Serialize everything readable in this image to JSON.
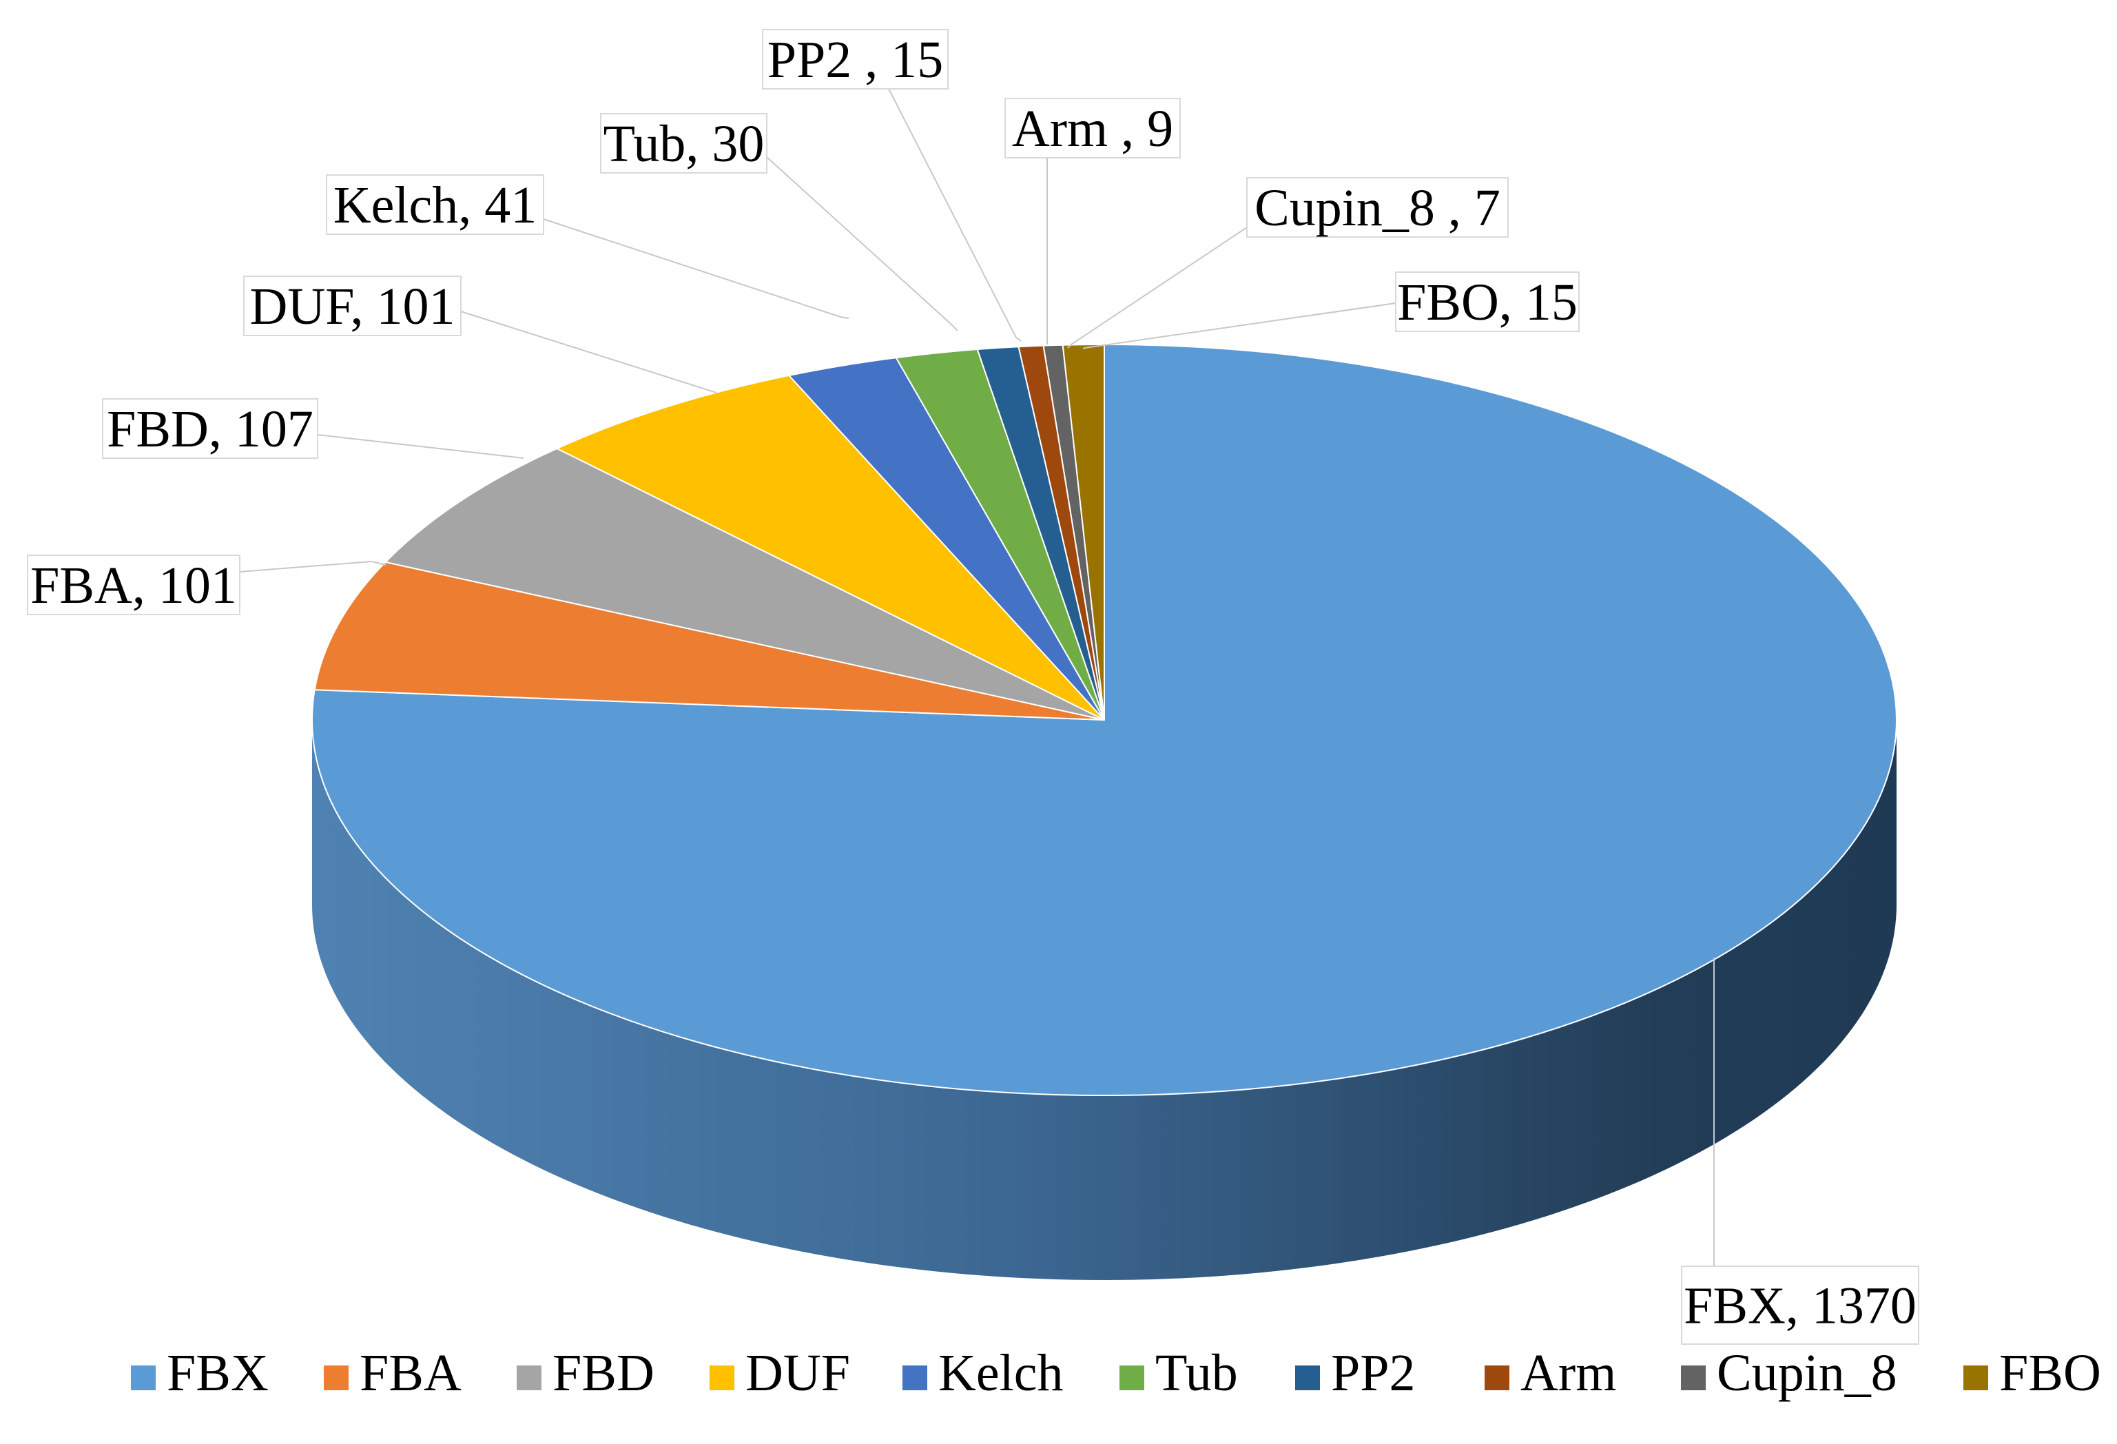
{
  "chart_data": {
    "type": "pie",
    "title": "",
    "categories": [
      "FBX",
      "FBA",
      "FBD",
      "DUF",
      "Kelch",
      "Tub",
      "PP2",
      "Arm",
      "Cupin_8",
      "FBO"
    ],
    "values": [
      1370,
      101,
      107,
      101,
      41,
      30,
      15,
      9,
      7,
      15
    ],
    "colors": [
      "#5b9bd5",
      "#ed7d31",
      "#a5a5a5",
      "#ffc000",
      "#4472c4",
      "#70ad47",
      "#255e91",
      "#9e480e",
      "#636363",
      "#997300"
    ],
    "data_labels": [
      "FBX, 1370",
      "FBA, 101",
      "FBD, 107",
      "DUF, 101",
      "Kelch, 41",
      "Tub, 30",
      "PP2 , 15",
      "Arm , 9",
      "Cupin_8 , 7",
      "FBO, 15"
    ],
    "legend": {
      "position": "bottom",
      "entries": [
        "FBX",
        "FBA",
        "FBD",
        "DUF",
        "Kelch",
        "Tub",
        "PP2",
        "Arm",
        "Cupin_8",
        "FBO"
      ]
    },
    "style": "3d-pie"
  }
}
